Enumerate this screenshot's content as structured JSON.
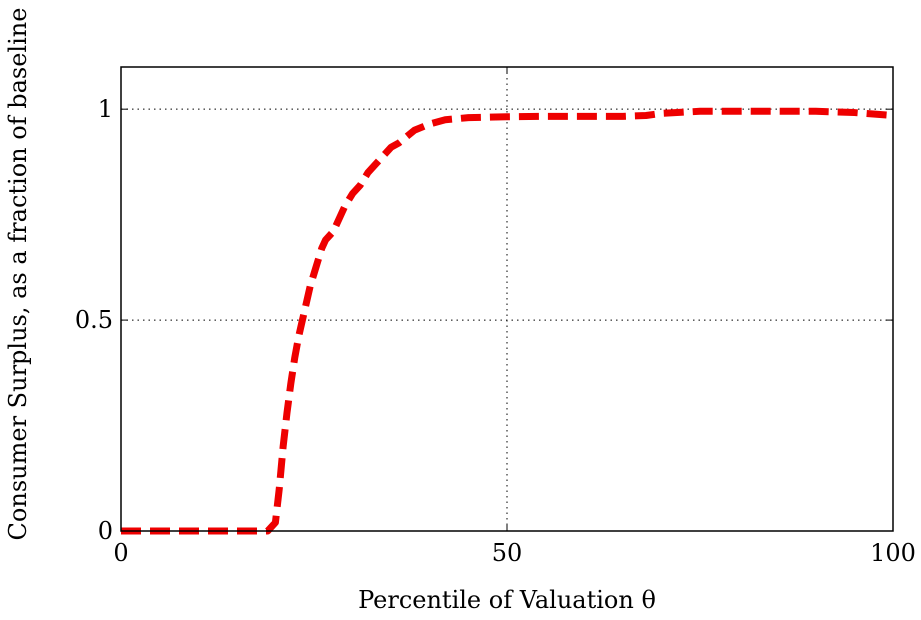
{
  "chart_data": {
    "type": "line",
    "title": "",
    "xlabel": "Percentile of Valuation θ",
    "ylabel": "Consumer Surplus, as a fraction of baseline",
    "xlim": [
      0,
      100
    ],
    "ylim": [
      0,
      1.1
    ],
    "xticks": [
      {
        "value": 0,
        "label": "0"
      },
      {
        "value": 50,
        "label": "50"
      },
      {
        "value": 100,
        "label": "100"
      }
    ],
    "yticks": [
      {
        "value": 0,
        "label": "0"
      },
      {
        "value": 0.5,
        "label": "0.5"
      },
      {
        "value": 1,
        "label": "1"
      }
    ],
    "grid": true,
    "series": [
      {
        "color": "#ee0000",
        "style": "dashed",
        "x": [
          0,
          5,
          10,
          15,
          19,
          20,
          20.5,
          21,
          21.5,
          22,
          22.5,
          23,
          23.5,
          24,
          24.5,
          25,
          25.5,
          26,
          26.5,
          27,
          27.5,
          28,
          29,
          30,
          31,
          32,
          33,
          34,
          35,
          36,
          37,
          38,
          40,
          42,
          45,
          50,
          55,
          60,
          65,
          68,
          70,
          75,
          80,
          85,
          90,
          95,
          100
        ],
        "y": [
          0,
          0,
          0,
          0,
          0,
          0.02,
          0.1,
          0.2,
          0.28,
          0.35,
          0.41,
          0.46,
          0.5,
          0.54,
          0.58,
          0.61,
          0.64,
          0.67,
          0.69,
          0.7,
          0.71,
          0.73,
          0.77,
          0.8,
          0.82,
          0.85,
          0.87,
          0.89,
          0.91,
          0.92,
          0.935,
          0.95,
          0.965,
          0.975,
          0.98,
          0.982,
          0.983,
          0.983,
          0.983,
          0.985,
          0.99,
          0.995,
          0.995,
          0.995,
          0.995,
          0.992,
          0.985
        ]
      }
    ]
  }
}
